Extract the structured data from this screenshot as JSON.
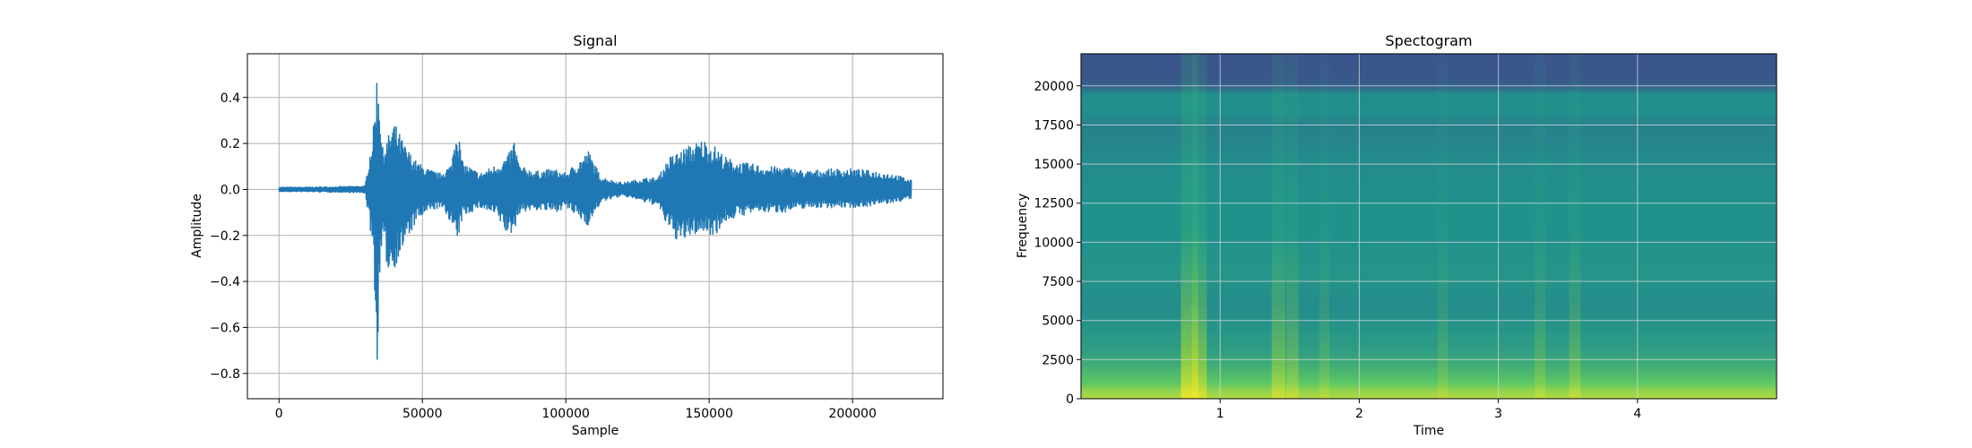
{
  "chart_data": [
    {
      "type": "line",
      "title": "Signal",
      "xlabel": "Sample",
      "ylabel": "Amplitude",
      "xlim": [
        -11025,
        231525
      ],
      "ylim": [
        -0.91,
        0.59
      ],
      "grid": true,
      "color": "#1f77b4",
      "x_ticks": [
        0,
        50000,
        100000,
        150000,
        200000
      ],
      "x_tick_labels": [
        "0",
        "50000",
        "100000",
        "150000",
        "200000"
      ],
      "y_ticks": [
        -0.8,
        -0.6,
        -0.4,
        -0.2,
        0.0,
        0.2,
        0.4
      ],
      "y_tick_labels": [
        "−0.8",
        "−0.6",
        "−0.4",
        "−0.2",
        "0.0",
        "0.2",
        "0.4"
      ],
      "series": [
        {
          "x": [
            0,
            10000,
            20000,
            30000,
            33000,
            34000,
            35000,
            36000,
            38000,
            40000,
            44000,
            48000,
            52000,
            56000,
            60000,
            62000,
            64000,
            70000,
            76000,
            80000,
            82000,
            84000,
            90000,
            96000,
            100000,
            104000,
            108000,
            112000,
            116000,
            120000,
            124000,
            128000,
            132000,
            136000,
            140000,
            144000,
            148000,
            152000,
            156000,
            160000,
            166000,
            170000,
            176000,
            184000,
            192000,
            200000,
            208000,
            214000,
            220500
          ],
          "y_max": [
            0.01,
            0.01,
            0.012,
            0.015,
            0.28,
            0.51,
            0.46,
            0.18,
            0.23,
            0.3,
            0.19,
            0.12,
            0.09,
            0.07,
            0.11,
            0.3,
            0.12,
            0.07,
            0.11,
            0.15,
            0.22,
            0.1,
            0.08,
            0.09,
            0.07,
            0.12,
            0.17,
            0.06,
            0.04,
            0.03,
            0.04,
            0.05,
            0.05,
            0.14,
            0.17,
            0.2,
            0.22,
            0.19,
            0.14,
            0.12,
            0.11,
            0.1,
            0.1,
            0.08,
            0.09,
            0.09,
            0.08,
            0.07,
            0.04
          ],
          "y_min": [
            -0.01,
            -0.01,
            -0.012,
            -0.015,
            -0.28,
            -0.84,
            -0.47,
            -0.22,
            -0.36,
            -0.35,
            -0.24,
            -0.14,
            -0.1,
            -0.08,
            -0.14,
            -0.25,
            -0.12,
            -0.08,
            -0.12,
            -0.21,
            -0.18,
            -0.1,
            -0.09,
            -0.1,
            -0.08,
            -0.12,
            -0.16,
            -0.06,
            -0.04,
            -0.03,
            -0.04,
            -0.06,
            -0.07,
            -0.18,
            -0.24,
            -0.2,
            -0.19,
            -0.2,
            -0.14,
            -0.12,
            -0.1,
            -0.1,
            -0.1,
            -0.08,
            -0.08,
            -0.08,
            -0.07,
            -0.06,
            -0.04
          ]
        }
      ]
    },
    {
      "type": "heatmap",
      "title": "Spectogram",
      "xlabel": "Time",
      "ylabel": "Frequency",
      "xlim": [
        0,
        5.0
      ],
      "ylim": [
        0,
        22050
      ],
      "grid": true,
      "x_ticks": [
        1,
        2,
        3,
        4
      ],
      "x_tick_labels": [
        "1",
        "2",
        "3",
        "4"
      ],
      "y_ticks": [
        0,
        2500,
        5000,
        7500,
        10000,
        12500,
        15000,
        17500,
        20000
      ],
      "y_tick_labels": [
        "0",
        "2500",
        "5000",
        "7500",
        "10000",
        "12500",
        "15000",
        "17500",
        "20000"
      ],
      "colormap": "viridis",
      "band_profile": {
        "frequency": [
          0,
          500,
          1000,
          2000,
          3000,
          4500,
          6000,
          8000,
          10000,
          12500,
          15000,
          16500,
          17500,
          18500,
          19500,
          20000,
          20500,
          22050
        ],
        "level": [
          0.88,
          0.83,
          0.74,
          0.64,
          0.56,
          0.52,
          0.48,
          0.52,
          0.5,
          0.5,
          0.48,
          0.45,
          0.44,
          0.5,
          0.48,
          0.3,
          0.27,
          0.26
        ]
      },
      "time_events": [
        {
          "time": 0.78,
          "strength": 0.28
        },
        {
          "time": 0.85,
          "strength": 0.22
        },
        {
          "time": 1.42,
          "strength": 0.18
        },
        {
          "time": 1.52,
          "strength": 0.14
        },
        {
          "time": 1.75,
          "strength": 0.08
        },
        {
          "time": 2.6,
          "strength": 0.08
        },
        {
          "time": 3.3,
          "strength": 0.1
        },
        {
          "time": 3.55,
          "strength": 0.12
        }
      ]
    }
  ]
}
